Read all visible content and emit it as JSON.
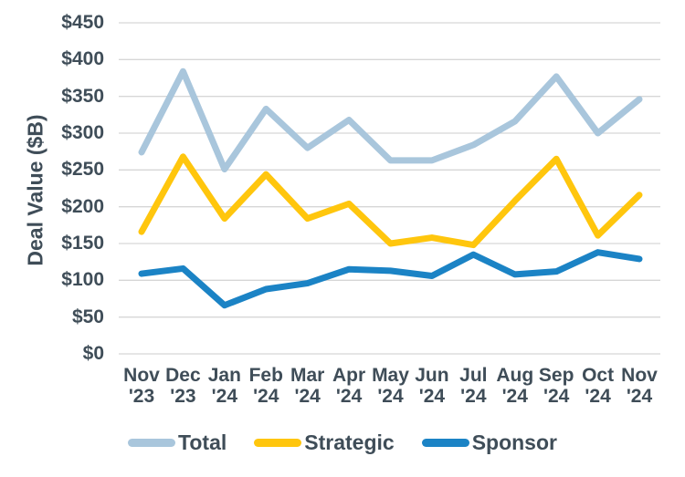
{
  "page": {
    "background_color": "#FFFFFF"
  },
  "chart_data": {
    "type": "line",
    "title": "",
    "xlabel": "",
    "ylabel": "Deal Value ($B)",
    "ylim": [
      0,
      450
    ],
    "ytick_step": 50,
    "ytick_prefix": "$",
    "grid": "horizontal",
    "legend_position": "bottom",
    "categories": [
      "Nov '23",
      "Dec '23",
      "Jan '24",
      "Feb '24",
      "Mar '24",
      "Apr '24",
      "May '24",
      "Jun '24",
      "Jul '24",
      "Aug '24",
      "Sep '24",
      "Oct '24",
      "Nov '24"
    ],
    "series": [
      {
        "name": "Total",
        "color": "#A9C6DC",
        "values": [
          274,
          384,
          251,
          333,
          280,
          318,
          263,
          263,
          284,
          316,
          377,
          300,
          346
        ]
      },
      {
        "name": "Strategic",
        "color": "#FFC60D",
        "values": [
          166,
          268,
          184,
          244,
          184,
          204,
          150,
          158,
          148,
          208,
          265,
          161,
          216
        ]
      },
      {
        "name": "Sponsor",
        "color": "#1B83C5",
        "values": [
          109,
          116,
          66,
          88,
          96,
          115,
          113,
          106,
          135,
          108,
          112,
          138,
          129
        ]
      }
    ],
    "style": {
      "grid_color": "#D6D6D6",
      "axis_text_color": "#3F4D58",
      "line_width": 7
    }
  }
}
